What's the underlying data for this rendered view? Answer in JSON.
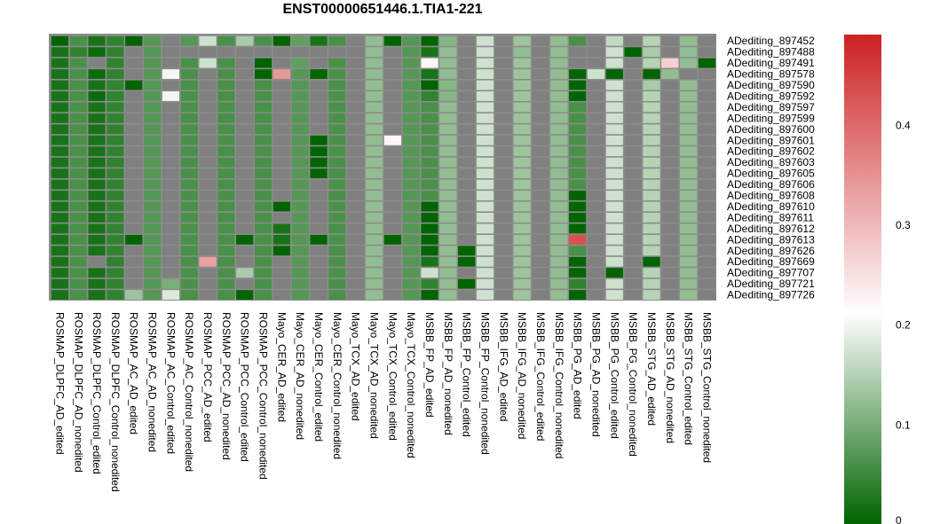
{
  "chart_data": {
    "type": "heatmap",
    "title": "ENST00000651446.1.TIA1-221",
    "rows": [
      "ADediting_897452",
      "ADediting_897488",
      "ADediting_897491",
      "ADediting_897578",
      "ADediting_897590",
      "ADediting_897592",
      "ADediting_897597",
      "ADediting_897599",
      "ADediting_897600",
      "ADediting_897601",
      "ADediting_897602",
      "ADediting_897603",
      "ADediting_897605",
      "ADediting_897606",
      "ADediting_897608",
      "ADediting_897610",
      "ADediting_897611",
      "ADediting_897612",
      "ADediting_897613",
      "ADediting_897626",
      "ADediting_897669",
      "ADediting_897707",
      "ADediting_897721",
      "ADediting_897726"
    ],
    "columns": [
      "ROSMAP_DLPFC_AD_edited",
      "ROSMAP_DLPFC_AD_nonedited",
      "ROSMAP_DLPFC_Control_edited",
      "ROSMAP_DLPFC_Control_nonedited",
      "ROSMAP_AC_AD_edited",
      "ROSMAP_AC_AD_nonedited",
      "ROSMAP_AC_Control_edited",
      "ROSMAP_AC_Control_nonedited",
      "ROSMAP_PCC_AD_edited",
      "ROSMAP_PCC_AD_nonedited",
      "ROSMAP_PCC_Control_edited",
      "ROSMAP_PCC_Control_nonedited",
      "Mayo_CER_AD_edited",
      "Mayo_CER_AD_nonedited",
      "Mayo_CER_Control_edited",
      "Mayo_CER_Control_nonedited",
      "Mayo_TCX_AD_edited",
      "Mayo_TCX_AD_nonedited",
      "Mayo_TCX_Control_edited",
      "Mayo_TCX_Control_nonedited",
      "MSBB_FP_AD_edited",
      "MSBB_FP_AD_nonedited",
      "MSBB_FP_Control_edited",
      "MSBB_FP_Control_nonedited",
      "MSBB_IFG_AD_edited",
      "MSBB_IFG_AD_nonedited",
      "MSBB_IFG_Control_edited",
      "MSBB_IFG_Control_nonedited",
      "MSBB_PG_AD_edited",
      "MSBB_PG_AD_nonedited",
      "MSBB_PG_Control_edited",
      "MSBB_PG_Control_nonedited",
      "MSBB_STG_AD_edited",
      "MSBB_STG_AD_nonedited",
      "MSBB_STG_Control_edited",
      "MSBB_STG_Control_nonedited"
    ],
    "values": [
      [
        0,
        0.06,
        0.02,
        0.04,
        0,
        0.07,
        null,
        0.07,
        0.17,
        0.06,
        0.14,
        0.06,
        0,
        0.08,
        0.02,
        0.06,
        null,
        0.12,
        0,
        0.07,
        0,
        0.11,
        null,
        0.17,
        null,
        0.13,
        null,
        0.12,
        0.06,
        null,
        0.16,
        null,
        0.15,
        null,
        0.12,
        null
      ],
      [
        0.02,
        0.04,
        0.01,
        0.04,
        null,
        0.07,
        null,
        null,
        null,
        null,
        null,
        null,
        null,
        null,
        null,
        null,
        null,
        0.12,
        null,
        0.07,
        0.02,
        0.12,
        null,
        0.17,
        null,
        0.12,
        null,
        0.12,
        null,
        null,
        0.17,
        0,
        0.14,
        null,
        0.12,
        null
      ],
      [
        0.02,
        0.06,
        null,
        0.04,
        null,
        0.07,
        null,
        0.06,
        0.17,
        0.06,
        null,
        0,
        null,
        0.08,
        null,
        0.06,
        null,
        0.12,
        null,
        0.07,
        0.22,
        0.12,
        null,
        0.17,
        null,
        0.13,
        null,
        0.12,
        null,
        null,
        0.17,
        null,
        0.15,
        0.27,
        0.12,
        0
      ],
      [
        0.02,
        0.06,
        0.01,
        0.04,
        null,
        0.07,
        0.2,
        0.06,
        null,
        0.06,
        null,
        0,
        0.34,
        0.07,
        0,
        0.06,
        null,
        0.12,
        null,
        0.07,
        0.02,
        0.12,
        null,
        0.17,
        null,
        0.13,
        null,
        0.12,
        0,
        0.17,
        0,
        null,
        0,
        0.12,
        null,
        null
      ],
      [
        0.02,
        0.06,
        0.02,
        0.04,
        0,
        0.07,
        null,
        0.06,
        null,
        0.06,
        null,
        0.06,
        null,
        0.07,
        null,
        0.06,
        null,
        0.12,
        null,
        0.07,
        0,
        0.11,
        null,
        0.17,
        null,
        0.13,
        null,
        0.12,
        0,
        null,
        0.17,
        null,
        0.14,
        null,
        0.12,
        null
      ],
      [
        0.02,
        0.06,
        0.01,
        0.04,
        null,
        0.07,
        0.2,
        0.06,
        null,
        0.06,
        null,
        0.06,
        null,
        0.07,
        null,
        0.06,
        null,
        0.12,
        null,
        0.07,
        0.04,
        0.11,
        null,
        0.17,
        null,
        0.13,
        null,
        0.12,
        0,
        null,
        0.17,
        null,
        0.15,
        null,
        0.12,
        null
      ],
      [
        0.02,
        0.06,
        0.02,
        0.04,
        null,
        0.07,
        null,
        0.06,
        null,
        0.06,
        null,
        0.06,
        null,
        0.07,
        null,
        0.06,
        null,
        0.12,
        null,
        0.07,
        0.06,
        0.12,
        null,
        0.17,
        null,
        0.13,
        null,
        0.12,
        0.06,
        null,
        0.17,
        null,
        0.15,
        null,
        0.12,
        null
      ],
      [
        0.02,
        0.06,
        0.02,
        0.04,
        null,
        0.07,
        null,
        0.06,
        null,
        0.06,
        null,
        0.06,
        null,
        0.07,
        null,
        0.06,
        null,
        0.12,
        null,
        0.07,
        0.06,
        0.12,
        null,
        0.17,
        null,
        0.13,
        null,
        0.12,
        0.06,
        null,
        0.17,
        null,
        0.15,
        null,
        0.12,
        null
      ],
      [
        0.02,
        0.06,
        0.02,
        0.04,
        null,
        0.07,
        null,
        0.06,
        null,
        0.06,
        null,
        0.06,
        null,
        0.07,
        null,
        0.06,
        null,
        0.12,
        null,
        0.07,
        0.06,
        0.12,
        null,
        0.17,
        null,
        0.13,
        null,
        0.12,
        0.06,
        null,
        0.17,
        null,
        0.15,
        null,
        0.12,
        null
      ],
      [
        0.02,
        0.06,
        0.02,
        0.04,
        null,
        0.07,
        null,
        0.06,
        null,
        0.06,
        null,
        0.06,
        null,
        0.07,
        0,
        0.06,
        null,
        0.12,
        0.22,
        0.07,
        0.06,
        0.12,
        null,
        0.17,
        null,
        0.13,
        null,
        0.12,
        0.06,
        null,
        0.17,
        null,
        0.15,
        null,
        0.12,
        null
      ],
      [
        0.02,
        0.06,
        0.02,
        0.04,
        null,
        0.07,
        null,
        0.06,
        null,
        0.06,
        null,
        0.06,
        null,
        0.07,
        0,
        0.06,
        null,
        0.12,
        null,
        0.07,
        0.06,
        0.12,
        null,
        0.17,
        null,
        0.13,
        null,
        0.12,
        0.06,
        null,
        0.17,
        null,
        0.15,
        null,
        0.12,
        null
      ],
      [
        0.02,
        0.06,
        0.02,
        0.04,
        null,
        0.07,
        null,
        0.06,
        null,
        0.06,
        null,
        0.06,
        null,
        0.07,
        0,
        0.06,
        null,
        0.12,
        null,
        0.07,
        0.06,
        0.12,
        null,
        0.17,
        null,
        0.13,
        null,
        0.12,
        0.06,
        null,
        0.17,
        null,
        0.15,
        null,
        0.12,
        null
      ],
      [
        0.02,
        0.06,
        0.02,
        0.04,
        null,
        0.07,
        null,
        0.06,
        null,
        0.06,
        null,
        0.06,
        null,
        0.07,
        0,
        0.06,
        null,
        0.12,
        null,
        0.07,
        0.06,
        0.12,
        null,
        0.17,
        null,
        0.13,
        null,
        0.12,
        0.06,
        null,
        0.17,
        null,
        0.15,
        null,
        0.12,
        null
      ],
      [
        0.02,
        0.06,
        0.02,
        0.04,
        null,
        0.07,
        null,
        0.06,
        null,
        0.06,
        null,
        0.06,
        null,
        0.07,
        null,
        0.06,
        null,
        0.12,
        null,
        0.07,
        0.06,
        0.12,
        null,
        0.17,
        null,
        0.13,
        null,
        0.12,
        0.06,
        null,
        0.17,
        null,
        0.15,
        null,
        0.12,
        null
      ],
      [
        0.02,
        0.06,
        0.02,
        0.04,
        null,
        0.07,
        null,
        0.06,
        null,
        0.06,
        null,
        0.06,
        null,
        0.07,
        null,
        0.06,
        null,
        0.12,
        null,
        0.07,
        0.06,
        0.12,
        null,
        0.17,
        null,
        0.13,
        null,
        0.12,
        0,
        null,
        0.17,
        null,
        0.15,
        null,
        0.12,
        null
      ],
      [
        0.02,
        0.06,
        0.02,
        0.04,
        null,
        0.07,
        null,
        0.06,
        null,
        0.06,
        null,
        0.06,
        0,
        0.07,
        null,
        0.06,
        null,
        0.12,
        null,
        0.07,
        0,
        0.12,
        null,
        0.17,
        null,
        0.13,
        null,
        0.12,
        0,
        null,
        0.17,
        null,
        0.15,
        null,
        0.12,
        null
      ],
      [
        0.02,
        0.06,
        0.02,
        0.04,
        null,
        0.07,
        null,
        0.06,
        null,
        0.06,
        null,
        0.06,
        null,
        0.07,
        null,
        0.06,
        null,
        0.12,
        null,
        0.07,
        0,
        0.12,
        null,
        0.17,
        null,
        0.13,
        null,
        0.12,
        0,
        null,
        0.17,
        null,
        0.15,
        null,
        0.12,
        null
      ],
      [
        0.02,
        0.06,
        0.02,
        0.04,
        null,
        0.07,
        null,
        0.06,
        null,
        0.06,
        null,
        0.06,
        0.02,
        0.07,
        null,
        0.06,
        null,
        0.12,
        null,
        0.07,
        0,
        0.12,
        null,
        0.17,
        null,
        0.13,
        null,
        0.12,
        0,
        null,
        0.17,
        null,
        0.15,
        null,
        0.12,
        null
      ],
      [
        0.02,
        0.06,
        0.02,
        0.04,
        0,
        0.07,
        null,
        0.06,
        null,
        0.06,
        0,
        0.06,
        0.02,
        0.07,
        0,
        0.06,
        null,
        0.12,
        0,
        0.07,
        0,
        0.12,
        null,
        0.17,
        null,
        0.13,
        null,
        0.12,
        0.43,
        null,
        0.17,
        null,
        0.15,
        null,
        0.12,
        null
      ],
      [
        0.02,
        0.06,
        0.02,
        0.04,
        null,
        0.07,
        null,
        0.06,
        null,
        0.06,
        null,
        0.06,
        0,
        0.07,
        null,
        0.06,
        null,
        0.12,
        null,
        0.07,
        0,
        0.12,
        0,
        0.17,
        null,
        0.13,
        null,
        0.12,
        0.06,
        null,
        0.17,
        null,
        0.15,
        null,
        0.12,
        null
      ],
      [
        0.02,
        0.06,
        null,
        0.04,
        null,
        0.07,
        null,
        0.06,
        0.33,
        0.06,
        null,
        0.06,
        null,
        0.07,
        null,
        0.06,
        null,
        0.12,
        null,
        0.07,
        0.02,
        0.12,
        0,
        0.17,
        null,
        0.13,
        null,
        0.12,
        0,
        null,
        0.17,
        null,
        0,
        null,
        0.12,
        null
      ],
      [
        0.02,
        0.06,
        0.02,
        0.04,
        null,
        0.07,
        null,
        0.06,
        null,
        0.06,
        0.14,
        0.06,
        null,
        0.07,
        null,
        0.06,
        null,
        0.12,
        null,
        0.07,
        0.17,
        0.12,
        null,
        0.17,
        null,
        0.13,
        null,
        0.12,
        0,
        null,
        0,
        null,
        0.15,
        null,
        0.12,
        null
      ],
      [
        0.02,
        0.06,
        0.02,
        0.04,
        null,
        0.07,
        0.1,
        0.06,
        null,
        0.06,
        null,
        0.06,
        null,
        0.07,
        null,
        0.06,
        null,
        0.12,
        null,
        0.07,
        0.04,
        0.12,
        0,
        0.17,
        null,
        0.13,
        null,
        0.12,
        0.04,
        null,
        0.17,
        null,
        0.15,
        null,
        0.12,
        null
      ],
      [
        0.02,
        0.06,
        0.02,
        0.04,
        0.13,
        0.07,
        0.18,
        0.06,
        null,
        0.06,
        0,
        0.06,
        null,
        0.07,
        null,
        0.06,
        null,
        0.12,
        null,
        0.07,
        0,
        0.12,
        null,
        0.17,
        null,
        0.13,
        null,
        0.12,
        0,
        null,
        0.17,
        null,
        0.15,
        null,
        0.12,
        null
      ]
    ],
    "legend": {
      "ticks": [
        0,
        0.1,
        0.2,
        0.3,
        0.4
      ],
      "tick_labels": [
        "0",
        "0.1",
        "0.2",
        "0.3",
        "0.4"
      ],
      "range": [
        0,
        0.49
      ],
      "colors": {
        "low": "#006400",
        "mid": "#ffffff",
        "high": "#cc2222",
        "na": "#808080"
      }
    }
  }
}
